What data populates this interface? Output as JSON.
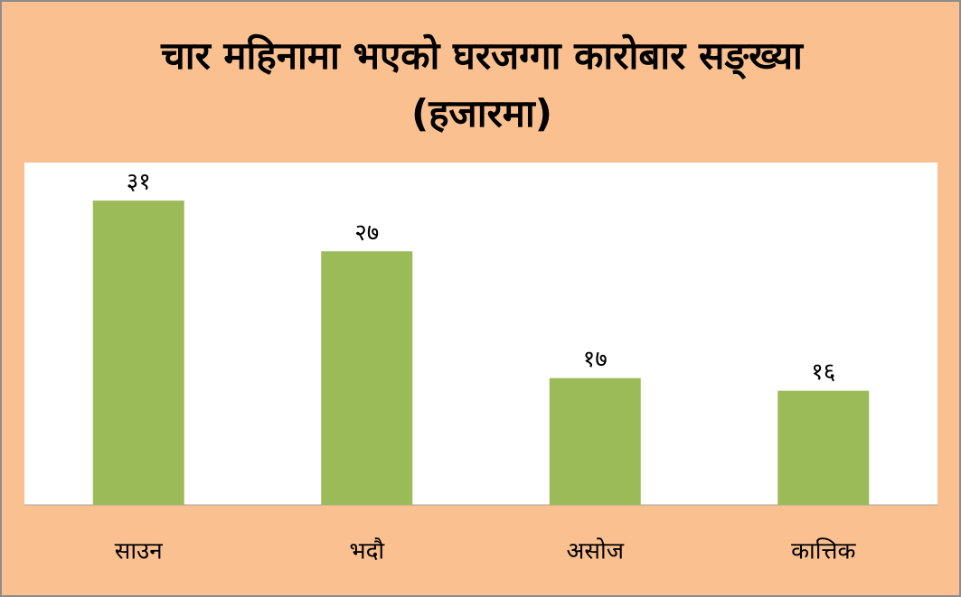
{
  "chart_data": {
    "type": "bar",
    "title": "चार महिनामा भएको घरजग्गा कारोबार सङ्ख्या (हजारमा)",
    "categories": [
      "साउन",
      "भदौ",
      "असोज",
      "कात्तिक"
    ],
    "values": [
      31,
      27,
      17,
      16
    ],
    "value_labels": [
      "३१",
      "२७",
      "१७",
      "१६"
    ],
    "color": "#9bbb59",
    "ylim": [
      7,
      34
    ],
    "grid": false
  }
}
